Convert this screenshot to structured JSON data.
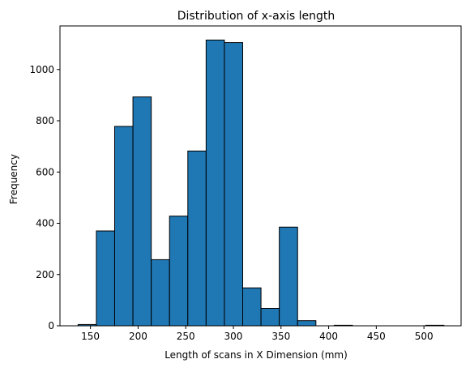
{
  "chart_data": {
    "type": "bar",
    "title": "Distribution of x-axis length",
    "xlabel": "Length of scans in X Dimension (mm)",
    "ylabel": "Frequency",
    "xlim": [
      118,
      539
    ],
    "ylim": [
      0,
      1170
    ],
    "x_ticks": [
      150,
      200,
      250,
      300,
      350,
      400,
      450,
      500
    ],
    "y_ticks": [
      0,
      200,
      400,
      600,
      800,
      1000
    ],
    "bin_edges": [
      137,
      156.2,
      175.4,
      194.6,
      213.8,
      233,
      252.2,
      271.4,
      290.6,
      309.8,
      329,
      348.2,
      367.4,
      386.6,
      405.8,
      425,
      444.2,
      463.4,
      482.6,
      501.8,
      521
    ],
    "values": [
      5,
      370,
      778,
      893,
      258,
      428,
      682,
      1115,
      1105,
      148,
      68,
      385,
      20,
      0,
      2,
      0,
      0,
      0,
      0,
      2
    ],
    "bar_color": "#1f77b4",
    "edge_color": "#000000",
    "grid": false,
    "legend": "none"
  }
}
